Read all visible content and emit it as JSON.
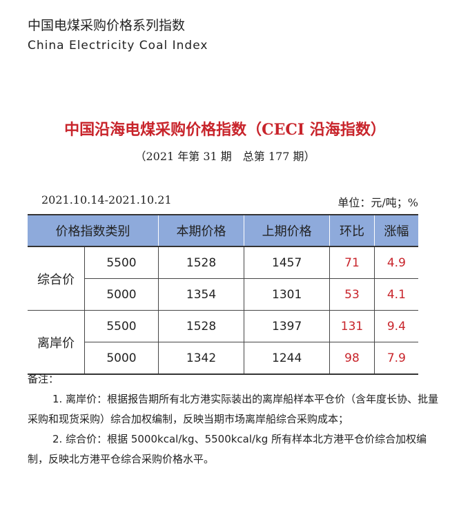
{
  "brand": {
    "cn": "中国电煤采购价格系列指数",
    "en": "China Electricity Coal Index"
  },
  "title": "中国沿海电煤采购价格指数（CECI 沿海指数）",
  "issue": "（2021 年第 31 期　总第 177 期）",
  "period": "2021.10.14-2021.10.21",
  "unit": "单位：元/吨；%",
  "table": {
    "headers": [
      "价格指数类别",
      "本期价格",
      "上期价格",
      "环比",
      "涨幅"
    ],
    "groups": [
      {
        "name": "综合价",
        "rows": [
          {
            "grade": "5500",
            "current": "1528",
            "previous": "1457",
            "change": "71",
            "pct": "4.9"
          },
          {
            "grade": "5000",
            "current": "1354",
            "previous": "1301",
            "change": "53",
            "pct": "4.1"
          }
        ]
      },
      {
        "name": "离岸价",
        "rows": [
          {
            "grade": "5500",
            "current": "1528",
            "previous": "1397",
            "change": "131",
            "pct": "9.4"
          },
          {
            "grade": "5000",
            "current": "1342",
            "previous": "1244",
            "change": "98",
            "pct": "7.9"
          }
        ]
      }
    ]
  },
  "notes": {
    "label": "备注：",
    "items": [
      "1. 离岸价：根据报告期所有北方港实际装出的离岸船样本平仓价（含年度长协、批量采购和现货采购）综合加权编制，反映当期市场离岸船综合采购成本；",
      "2. 综合价：根据 5000kcal/kg、5500kcal/kg 所有样本北方港平仓价综合加权编制，反映北方港平仓综合采购价格水平。"
    ]
  },
  "colors": {
    "header_bg": "#8eaadb",
    "accent_red": "#c8242b"
  }
}
